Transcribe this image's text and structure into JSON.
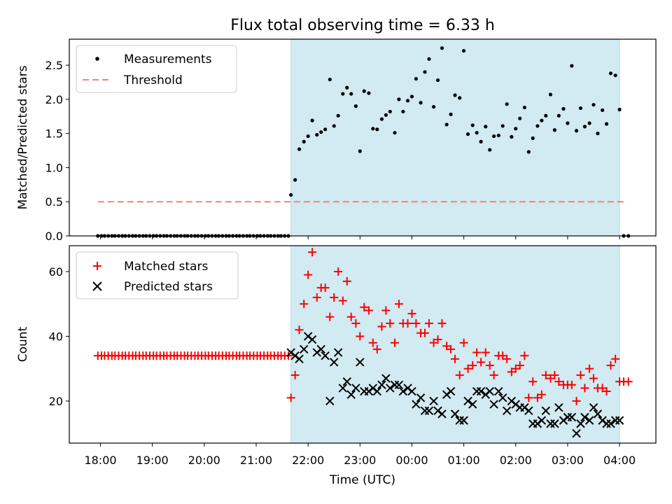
{
  "chart_data": {
    "title": "Flux total observing time = 6.33 h",
    "xlabel": "Time (UTC)",
    "x_ticks": [
      "18:00",
      "19:00",
      "20:00",
      "21:00",
      "22:00",
      "23:00",
      "00:00",
      "01:00",
      "02:00",
      "03:00",
      "04:00"
    ],
    "x_range_hours": [
      17.4,
      28.7
    ],
    "highlight_span_hours": [
      21.67,
      28.0
    ],
    "highlight_color": "#add8e6",
    "panels": [
      {
        "type": "scatter",
        "ylabel": "Matched/Predicted stars",
        "ylim": [
          0,
          2.88
        ],
        "y_ticks": [
          "0.0",
          "0.5",
          "1.0",
          "1.5",
          "2.0",
          "2.5"
        ],
        "y_tick_values": [
          0,
          0.5,
          1.0,
          1.5,
          2.0,
          2.5
        ],
        "legend_position": "top-left",
        "series": [
          {
            "name": "Measurements",
            "marker": "dot",
            "color": "#000000",
            "x": [
              17.95,
              18.02,
              18.08,
              18.15,
              18.22,
              18.28,
              18.35,
              18.42,
              18.48,
              18.55,
              18.62,
              18.68,
              18.75,
              18.82,
              18.88,
              18.95,
              19.02,
              19.08,
              19.15,
              19.22,
              19.28,
              19.35,
              19.42,
              19.48,
              19.55,
              19.62,
              19.68,
              19.75,
              19.82,
              19.88,
              19.95,
              20.02,
              20.08,
              20.15,
              20.22,
              20.28,
              20.35,
              20.42,
              20.48,
              20.55,
              20.62,
              20.68,
              20.75,
              20.82,
              20.88,
              20.95,
              21.02,
              21.08,
              21.15,
              21.22,
              21.28,
              21.35,
              21.42,
              21.48,
              21.55,
              21.62,
              21.67,
              21.75,
              21.83,
              21.92,
              22.0,
              22.08,
              22.17,
              22.25,
              22.33,
              22.42,
              22.5,
              22.58,
              22.67,
              22.75,
              22.83,
              22.92,
              23.0,
              23.08,
              23.17,
              23.25,
              23.33,
              23.42,
              23.5,
              23.58,
              23.67,
              23.75,
              23.83,
              23.92,
              24.0,
              24.08,
              24.17,
              24.25,
              24.33,
              24.42,
              24.5,
              24.58,
              24.67,
              24.75,
              24.83,
              24.92,
              25.0,
              25.08,
              25.17,
              25.25,
              25.33,
              25.42,
              25.5,
              25.58,
              25.67,
              25.75,
              25.83,
              25.92,
              26.0,
              26.08,
              26.17,
              26.25,
              26.33,
              26.42,
              26.5,
              26.58,
              26.67,
              26.75,
              26.83,
              26.92,
              27.0,
              27.08,
              27.17,
              27.25,
              27.33,
              27.42,
              27.5,
              27.58,
              27.67,
              27.75,
              27.83,
              27.92,
              28.0,
              28.08,
              28.17
            ],
            "y": [
              0,
              0,
              0,
              0,
              0,
              0,
              0,
              0,
              0,
              0,
              0,
              0,
              0,
              0,
              0,
              0,
              0,
              0,
              0,
              0,
              0,
              0,
              0,
              0,
              0,
              0,
              0,
              0,
              0,
              0,
              0,
              0,
              0,
              0,
              0,
              0,
              0,
              0,
              0,
              0,
              0,
              0,
              0,
              0,
              0,
              0,
              0,
              0,
              0,
              0,
              0,
              0,
              0,
              0,
              0,
              0,
              0.6,
              0.82,
              1.27,
              1.38,
              1.46,
              1.69,
              1.48,
              1.52,
              1.56,
              2.29,
              1.61,
              1.76,
              2.08,
              2.17,
              2.08,
              1.9,
              1.24,
              2.12,
              2.09,
              1.57,
              1.56,
              1.71,
              1.77,
              1.82,
              1.51,
              2.0,
              1.82,
              1.98,
              2.04,
              2.3,
              1.95,
              2.4,
              2.59,
              1.89,
              2.28,
              2.75,
              1.63,
              1.78,
              2.06,
              2.02,
              2.71,
              1.49,
              1.62,
              1.51,
              1.38,
              1.6,
              1.26,
              1.46,
              1.47,
              1.61,
              1.93,
              1.45,
              1.57,
              1.72,
              1.88,
              1.23,
              1.43,
              1.61,
              1.69,
              1.76,
              2.07,
              1.55,
              1.76,
              1.86,
              1.65,
              2.49,
              1.54,
              1.87,
              1.6,
              1.65,
              1.92,
              1.5,
              1.84,
              1.64,
              2.38,
              2.35,
              1.85,
              0,
              0
            ]
          },
          {
            "name": "Threshold",
            "marker": "dashed-line",
            "color": "#ff7a7a",
            "x": [
              17.95,
              28.1
            ],
            "y": [
              0.5,
              0.5
            ]
          }
        ]
      },
      {
        "type": "scatter",
        "ylabel": "Count",
        "ylim": [
          7,
          68
        ],
        "y_ticks": [
          "20",
          "40",
          "60"
        ],
        "y_tick_values": [
          20,
          40,
          60
        ],
        "legend_position": "top-left",
        "series": [
          {
            "name": "Matched stars",
            "marker": "plus",
            "color": "#ff0000",
            "x": [
              17.95,
              18.02,
              18.08,
              18.15,
              18.22,
              18.28,
              18.35,
              18.42,
              18.48,
              18.55,
              18.62,
              18.68,
              18.75,
              18.82,
              18.88,
              18.95,
              19.02,
              19.08,
              19.15,
              19.22,
              19.28,
              19.35,
              19.42,
              19.48,
              19.55,
              19.62,
              19.68,
              19.75,
              19.82,
              19.88,
              19.95,
              20.02,
              20.08,
              20.15,
              20.22,
              20.28,
              20.35,
              20.42,
              20.48,
              20.55,
              20.62,
              20.68,
              20.75,
              20.82,
              20.88,
              20.95,
              21.02,
              21.08,
              21.15,
              21.22,
              21.28,
              21.35,
              21.42,
              21.48,
              21.55,
              21.62,
              21.67,
              21.75,
              21.83,
              21.92,
              22.0,
              22.08,
              22.17,
              22.25,
              22.33,
              22.42,
              22.5,
              22.58,
              22.67,
              22.75,
              22.83,
              22.92,
              23.0,
              23.08,
              23.17,
              23.25,
              23.33,
              23.42,
              23.5,
              23.58,
              23.67,
              23.75,
              23.83,
              23.92,
              24.0,
              24.08,
              24.17,
              24.25,
              24.33,
              24.42,
              24.5,
              24.58,
              24.67,
              24.75,
              24.83,
              24.92,
              25.0,
              25.08,
              25.17,
              25.25,
              25.33,
              25.42,
              25.5,
              25.58,
              25.67,
              25.75,
              25.83,
              25.92,
              26.0,
              26.08,
              26.17,
              26.25,
              26.33,
              26.42,
              26.5,
              26.58,
              26.67,
              26.75,
              26.83,
              26.92,
              27.0,
              27.08,
              27.17,
              27.25,
              27.33,
              27.42,
              27.5,
              27.58,
              27.67,
              27.75,
              27.83,
              27.92,
              28.0,
              28.08,
              28.17
            ],
            "y": [
              34,
              34,
              34,
              34,
              34,
              34,
              34,
              34,
              34,
              34,
              34,
              34,
              34,
              34,
              34,
              34,
              34,
              34,
              34,
              34,
              34,
              34,
              34,
              34,
              34,
              34,
              34,
              34,
              34,
              34,
              34,
              34,
              34,
              34,
              34,
              34,
              34,
              34,
              34,
              34,
              34,
              34,
              34,
              34,
              34,
              34,
              34,
              34,
              34,
              34,
              34,
              34,
              34,
              34,
              34,
              34,
              21,
              28,
              42,
              50,
              59,
              66,
              52,
              55,
              55,
              46,
              52,
              60,
              51,
              57,
              46,
              44,
              40,
              49,
              48,
              38,
              36,
              43,
              48,
              44,
              38,
              50,
              44,
              44,
              47,
              44,
              41,
              41,
              44,
              38,
              39,
              44,
              37,
              36,
              33,
              28,
              38,
              30,
              31,
              35,
              32,
              35,
              31,
              28,
              34,
              34,
              33,
              29,
              30,
              31,
              34,
              21,
              26,
              21,
              22,
              28,
              27,
              28,
              26,
              25,
              25,
              25,
              20,
              28,
              24,
              30,
              27,
              24,
              24,
              23,
              31,
              33,
              26,
              26,
              26
            ]
          },
          {
            "name": "Predicted stars",
            "marker": "cross",
            "color": "#000000",
            "x": [
              21.67,
              21.75,
              21.83,
              21.92,
              22.0,
              22.08,
              22.17,
              22.25,
              22.33,
              22.42,
              22.5,
              22.58,
              22.67,
              22.75,
              22.83,
              22.92,
              23.0,
              23.08,
              23.17,
              23.25,
              23.33,
              23.42,
              23.5,
              23.58,
              23.67,
              23.75,
              23.83,
              23.92,
              24.0,
              24.08,
              24.17,
              24.25,
              24.33,
              24.42,
              24.5,
              24.58,
              24.67,
              24.75,
              24.83,
              24.92,
              25.0,
              25.08,
              25.17,
              25.25,
              25.33,
              25.42,
              25.5,
              25.58,
              25.67,
              25.75,
              25.83,
              25.92,
              26.0,
              26.08,
              26.17,
              26.25,
              26.33,
              26.42,
              26.5,
              26.58,
              26.67,
              26.75,
              26.83,
              26.92,
              27.0,
              27.08,
              27.17,
              27.25,
              27.33,
              27.42,
              27.5,
              27.58,
              27.67,
              27.75,
              27.83,
              27.92,
              28.0
            ],
            "y": [
              35,
              34,
              33,
              36,
              40,
              39,
              35,
              36,
              34,
              20,
              32,
              35,
              24,
              26,
              22,
              24,
              32,
              23,
              23,
              24,
              23,
              25,
              27,
              24,
              25,
              25,
              23,
              24,
              23,
              19,
              21,
              17,
              17,
              20,
              17,
              16,
              22,
              23,
              16,
              14,
              14,
              20,
              19,
              23,
              23,
              22,
              23,
              19,
              23,
              21,
              17,
              20,
              19,
              18,
              18,
              17,
              13,
              13,
              14,
              17,
              13,
              13,
              18,
              14,
              15,
              15,
              10,
              13,
              15,
              14,
              18,
              16,
              14,
              13,
              13,
              14,
              14
            ]
          }
        ]
      }
    ]
  }
}
